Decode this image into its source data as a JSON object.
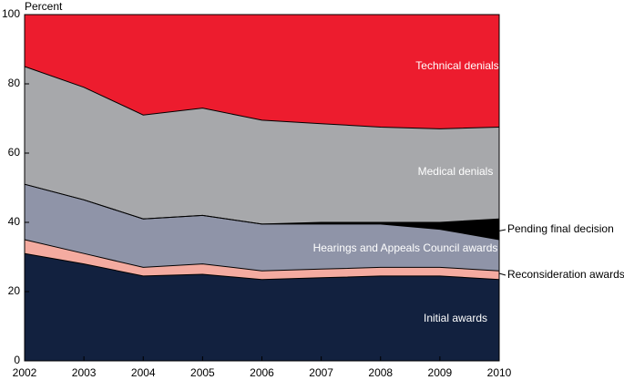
{
  "chart_data": {
    "type": "stacked-area",
    "y_label": "Percent",
    "categories": [
      "2002",
      "2003",
      "2004",
      "2005",
      "2006",
      "2007",
      "2008",
      "2009",
      "2010"
    ],
    "series": [
      {
        "name": "Initial awards",
        "color": "#12213f",
        "values": [
          31,
          28,
          24.5,
          25,
          23.5,
          24,
          24.5,
          24.5,
          23.5
        ]
      },
      {
        "name": "Reconsideration awards",
        "color": "#f4aba0",
        "values": [
          4,
          3,
          2.5,
          3,
          2.5,
          2.5,
          2.5,
          2.5,
          2.5
        ]
      },
      {
        "name": "Hearings and Appeals Council awards",
        "color": "#8f94a8",
        "values": [
          16,
          15.5,
          14,
          14,
          13.5,
          13,
          12.5,
          11,
          9
        ]
      },
      {
        "name": "Pending final decision",
        "color": "#000000",
        "values": [
          0,
          0,
          0,
          0,
          0,
          0.5,
          0.5,
          2,
          6
        ]
      },
      {
        "name": "Medical denials",
        "color": "#a7a8ab",
        "values": [
          34,
          32.5,
          30,
          31,
          30,
          28.5,
          27.5,
          27,
          26.5
        ]
      },
      {
        "name": "Technical denials",
        "color": "#ed1c2e",
        "values": [
          15,
          21,
          29,
          27,
          30.5,
          31.5,
          32.5,
          33,
          32.5
        ]
      }
    ],
    "ylim": [
      0,
      100
    ],
    "yticks": [
      0,
      20,
      40,
      60,
      80,
      100
    ]
  }
}
